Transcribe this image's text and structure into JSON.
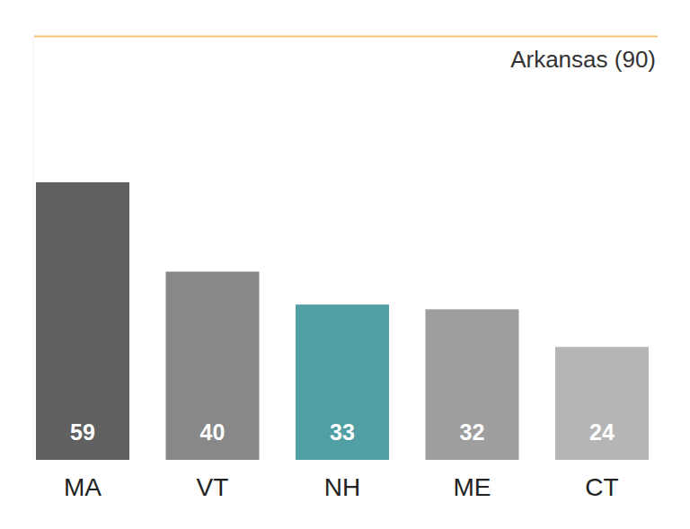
{
  "chart_data": {
    "type": "bar",
    "categories": [
      "MA",
      "VT",
      "NH",
      "ME",
      "CT"
    ],
    "values": [
      59,
      40,
      33,
      32,
      24
    ],
    "colors": [
      "#616161",
      "#888888",
      "#4f9fa4",
      "#9e9e9e",
      "#b5b5b5"
    ],
    "ylim": [
      0,
      90
    ],
    "tick_labels": "x",
    "data_labels": true,
    "grid": false,
    "reference": {
      "value": 90,
      "label": "Arkansas (90)"
    }
  }
}
